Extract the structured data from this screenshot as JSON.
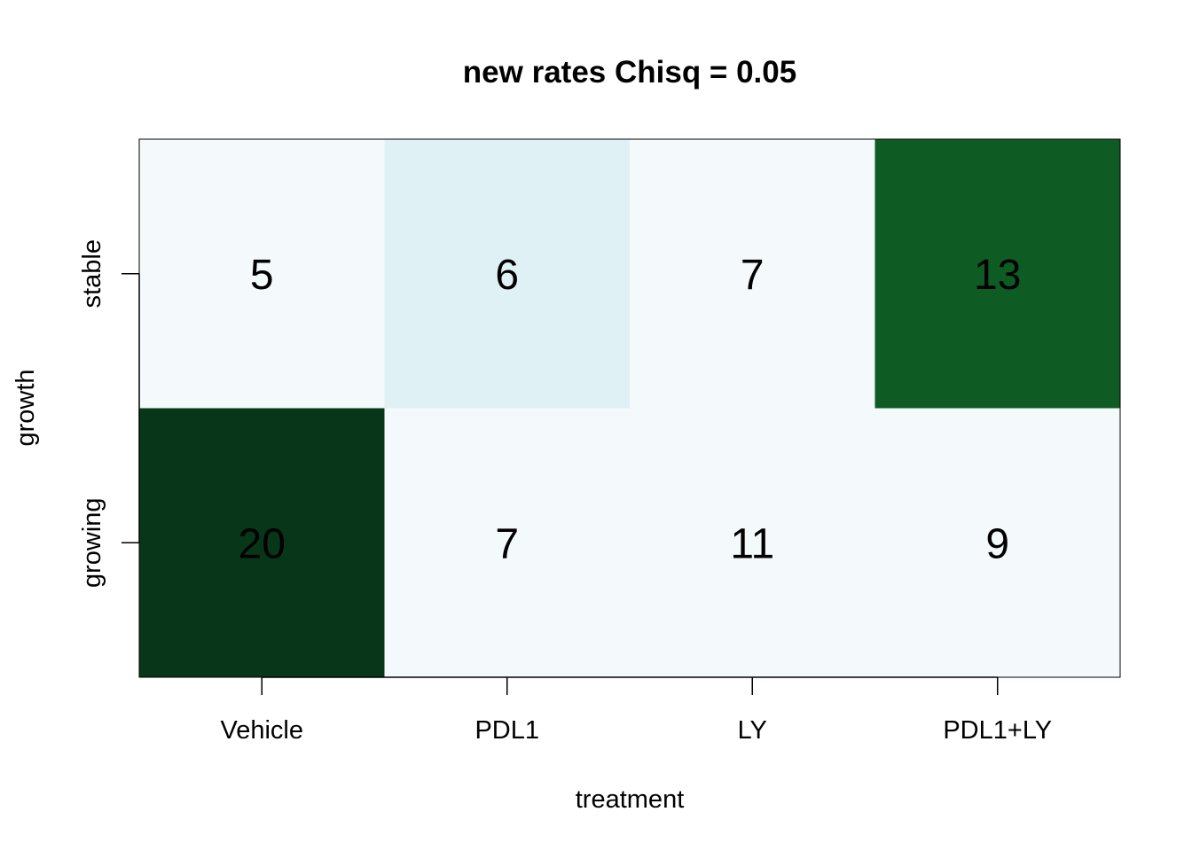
{
  "chart_data": {
    "type": "heatmap",
    "title": "new rates Chisq = 0.05",
    "xlabel": "treatment",
    "ylabel": "growth",
    "x_categories": [
      "Vehicle",
      "PDL1",
      "LY",
      "PDL1+LY"
    ],
    "y_categories": [
      "stable",
      "growing"
    ],
    "values": [
      [
        5,
        6,
        7,
        13
      ],
      [
        20,
        7,
        11,
        9
      ]
    ],
    "cell_colors": [
      [
        "#f4f9fc",
        "#dff1f5",
        "#f4f9fc",
        "#0e5c23"
      ],
      [
        "#083618",
        "#f4f9fc",
        "#f4f9fc",
        "#f4f9fc"
      ]
    ]
  }
}
